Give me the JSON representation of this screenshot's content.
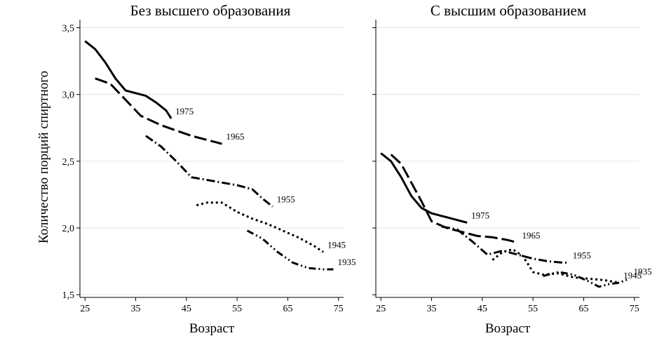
{
  "chart_data": {
    "type": "line",
    "ylabel": "Количество порций спиртного",
    "xlabel": "Возраст",
    "xticks": [
      25,
      35,
      45,
      55,
      65,
      75
    ],
    "xtick_labels": [
      "25",
      "35",
      "45",
      "55",
      "65",
      "75"
    ],
    "yticks": [
      1.5,
      2.0,
      2.5,
      3.0,
      3.5
    ],
    "ytick_labels": [
      "1,5",
      "2,0",
      "2,5",
      "3,0",
      "3,5"
    ],
    "xlim": [
      24,
      76
    ],
    "ylim": [
      1.48,
      3.55
    ],
    "panels": [
      {
        "title": "Без высшего образования",
        "series": [
          {
            "name": "1975",
            "style": "solid",
            "x": [
              25,
              27,
              29,
              31,
              33,
              35,
              37,
              39,
              41,
              42
            ],
            "y": [
              3.4,
              3.34,
              3.24,
              3.12,
              3.03,
              3.01,
              2.99,
              2.94,
              2.88,
              2.82
            ]
          },
          {
            "name": "1965",
            "style": "longdash",
            "x": [
              27,
              30,
              33,
              36,
              40,
              43,
              46,
              49,
              52
            ],
            "y": [
              3.12,
              3.08,
              2.96,
              2.84,
              2.77,
              2.73,
              2.69,
              2.66,
              2.63
            ]
          },
          {
            "name": "1955",
            "style": "dashdot",
            "x": [
              37,
              40,
              43,
              46,
              49,
              52,
              55,
              58,
              60,
              62
            ],
            "y": [
              2.69,
              2.61,
              2.5,
              2.38,
              2.36,
              2.34,
              2.32,
              2.29,
              2.22,
              2.16
            ]
          },
          {
            "name": "1945",
            "style": "dot",
            "x": [
              47,
              49,
              52,
              55,
              58,
              61,
              64,
              67,
              70,
              72
            ],
            "y": [
              2.17,
              2.19,
              2.19,
              2.12,
              2.07,
              2.03,
              1.98,
              1.93,
              1.87,
              1.82
            ]
          },
          {
            "name": "1935",
            "style": "dashdotdot",
            "x": [
              57,
              60,
              63,
              66,
              69,
              72,
              74
            ],
            "y": [
              1.98,
              1.92,
              1.82,
              1.74,
              1.7,
              1.69,
              1.69
            ]
          }
        ]
      },
      {
        "title": "С высшим образованием",
        "series": [
          {
            "name": "1975",
            "style": "solid",
            "x": [
              25,
              27,
              29,
              31,
              33,
              35,
              37,
              39,
              41,
              42
            ],
            "y": [
              2.56,
              2.5,
              2.38,
              2.24,
              2.15,
              2.11,
              2.09,
              2.07,
              2.05,
              2.04
            ]
          },
          {
            "name": "1965",
            "style": "longdash",
            "x": [
              27,
              29,
              31,
              33,
              35,
              38,
              41,
              44,
              47,
              50,
              52
            ],
            "y": [
              2.55,
              2.48,
              2.34,
              2.2,
              2.05,
              2.0,
              1.97,
              1.94,
              1.93,
              1.91,
              1.89
            ]
          },
          {
            "name": "1955",
            "style": "dashdot",
            "x": [
              37,
              40,
              43,
              46,
              49,
              52,
              55,
              58,
              61,
              62
            ],
            "y": [
              2.01,
              1.99,
              1.9,
              1.8,
              1.83,
              1.8,
              1.77,
              1.75,
              1.74,
              1.74
            ]
          },
          {
            "name": "1945",
            "style": "dot",
            "x": [
              47,
              49,
              51,
              53,
              55,
              57,
              60,
              63,
              66,
              69,
              72
            ],
            "y": [
              1.76,
              1.82,
              1.84,
              1.79,
              1.67,
              1.65,
              1.66,
              1.63,
              1.62,
              1.61,
              1.59
            ]
          },
          {
            "name": "1935",
            "style": "dashdotdot",
            "x": [
              57,
              60,
              63,
              66,
              68,
              70,
              72,
              74
            ],
            "y": [
              1.64,
              1.67,
              1.65,
              1.6,
              1.56,
              1.58,
              1.59,
              1.62
            ]
          }
        ]
      }
    ]
  }
}
